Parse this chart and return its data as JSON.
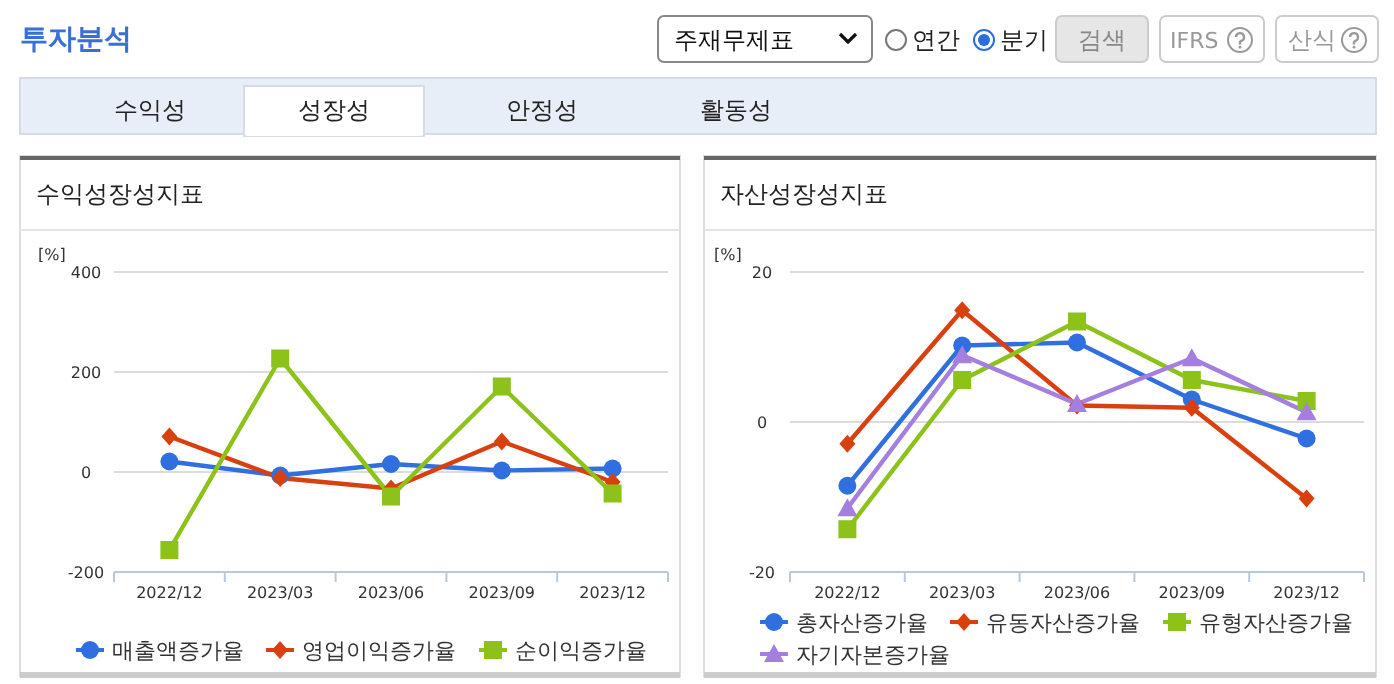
{
  "chart_data": [
    {
      "type": "other",
      "title": "투자분석",
      "annotations": [
        "주재무제표",
        "연간",
        "분기",
        "검색",
        "IFRS",
        "산식",
        "수익성",
        "성장성",
        "안정성",
        "활동성"
      ]
    },
    {
      "type": "line",
      "title": "수익성장성지표",
      "ylabel": "[%]",
      "categories": [
        "2022/12",
        "2023/03",
        "2023/06",
        "2023/09",
        "2023/12"
      ],
      "ylim": [
        -200,
        400
      ],
      "yticks": [
        -200,
        0,
        200,
        400
      ],
      "grid": "y",
      "legend": "bottom",
      "line_style": "solid",
      "series": [
        {
          "name": "매출액증가율",
          "color": "#2f6fe0",
          "marker": "circle",
          "values": [
            21,
            -7,
            16,
            3,
            7
          ]
        },
        {
          "name": "영업이익증가율",
          "color": "#d9400f",
          "marker": "diamond",
          "values": [
            71,
            -12,
            -33,
            61,
            -20
          ]
        },
        {
          "name": "순이익증가율",
          "color": "#8cc21a",
          "marker": "square",
          "values": [
            -156,
            227,
            -49,
            171,
            -43
          ]
        }
      ]
    },
    {
      "type": "line",
      "title": "자산성장성지표",
      "ylabel": "[%]",
      "categories": [
        "2022/12",
        "2023/03",
        "2023/06",
        "2023/09",
        "2023/12"
      ],
      "ylim": [
        -20,
        20
      ],
      "yticks": [
        -20,
        0,
        20
      ],
      "grid": "y",
      "legend": "bottom",
      "line_style": "solid",
      "series": [
        {
          "name": "총자산증가율",
          "color": "#2f6fe0",
          "marker": "circle",
          "values": [
            -8.5,
            10.2,
            10.6,
            3.0,
            -2.2
          ]
        },
        {
          "name": "유동자산증가율",
          "color": "#d9400f",
          "marker": "diamond",
          "values": [
            -2.9,
            14.9,
            2.2,
            1.9,
            -10.2
          ]
        },
        {
          "name": "유형자산증가율",
          "color": "#8cc21a",
          "marker": "square",
          "values": [
            -14.3,
            5.6,
            13.4,
            5.6,
            2.8
          ]
        },
        {
          "name": "자기자본증가율",
          "color": "#a57fe0",
          "marker": "triangle",
          "values": [
            -11.5,
            8.9,
            2.4,
            8.5,
            1.3
          ]
        }
      ]
    }
  ]
}
